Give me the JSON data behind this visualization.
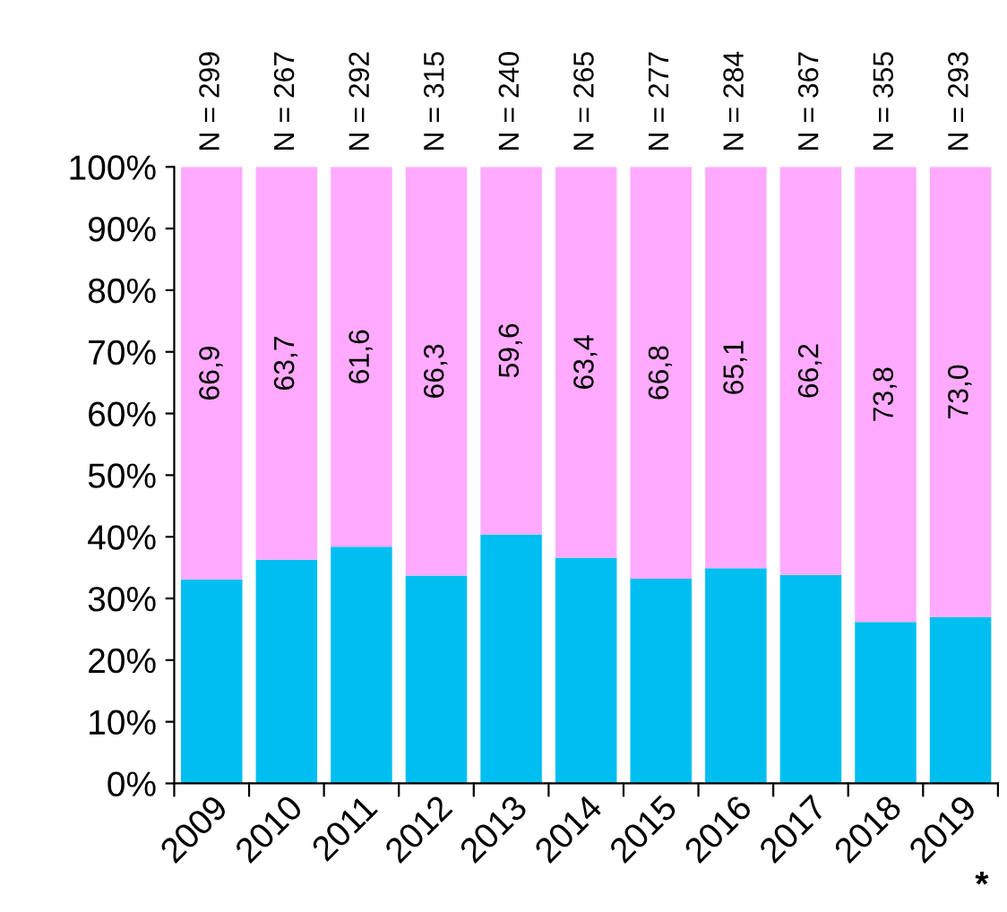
{
  "chart_data": {
    "type": "bar",
    "stacked": true,
    "categories": [
      "2009",
      "2010",
      "2011",
      "2012",
      "2013",
      "2014",
      "2015",
      "2016",
      "2017",
      "2018",
      "2019"
    ],
    "series": [
      {
        "color": "#00bff0",
        "values": [
          33.1,
          36.3,
          38.4,
          33.7,
          40.4,
          36.6,
          33.2,
          34.9,
          33.8,
          26.2,
          27.0
        ]
      },
      {
        "color": "#ffaaff",
        "values": [
          66.9,
          63.7,
          61.6,
          66.3,
          59.6,
          63.4,
          66.8,
          65.1,
          66.2,
          73.8,
          73.0
        ],
        "value_labels": [
          "66,9",
          "63,7",
          "61,6",
          "66,3",
          "59,6",
          "63,4",
          "66,8",
          "65,1",
          "66,2",
          "73,8",
          "73,0"
        ]
      }
    ],
    "ylim": [
      0,
      100
    ],
    "yticks": [
      {
        "value": 0,
        "label": "0%"
      },
      {
        "value": 10,
        "label": "10%"
      },
      {
        "value": 20,
        "label": "20%"
      },
      {
        "value": 30,
        "label": "30%"
      },
      {
        "value": 40,
        "label": "40%"
      },
      {
        "value": 50,
        "label": "50%"
      },
      {
        "value": 60,
        "label": "60%"
      },
      {
        "value": 70,
        "label": "70%"
      },
      {
        "value": 80,
        "label": "80%"
      },
      {
        "value": 90,
        "label": "90%"
      },
      {
        "value": 100,
        "label": "100%"
      }
    ],
    "grid": false,
    "legend": false,
    "annotations": [
      {
        "text": "N = 299",
        "x": "2009",
        "y": 100
      },
      {
        "text": "N = 267",
        "x": "2010",
        "y": 100
      },
      {
        "text": "N = 292",
        "x": "2011",
        "y": 100
      },
      {
        "text": "N = 315",
        "x": "2012",
        "y": 100
      },
      {
        "text": "N = 240",
        "x": "2013",
        "y": 100
      },
      {
        "text": "N = 265",
        "x": "2014",
        "y": 100
      },
      {
        "text": "N = 277",
        "x": "2015",
        "y": 100
      },
      {
        "text": "N = 284",
        "x": "2016",
        "y": 100
      },
      {
        "text": "N = 367",
        "x": "2017",
        "y": 100
      },
      {
        "text": "N = 355",
        "x": "2018",
        "y": 100
      },
      {
        "text": "N = 293",
        "x": "2019",
        "y": 100
      },
      "*"
    ]
  }
}
